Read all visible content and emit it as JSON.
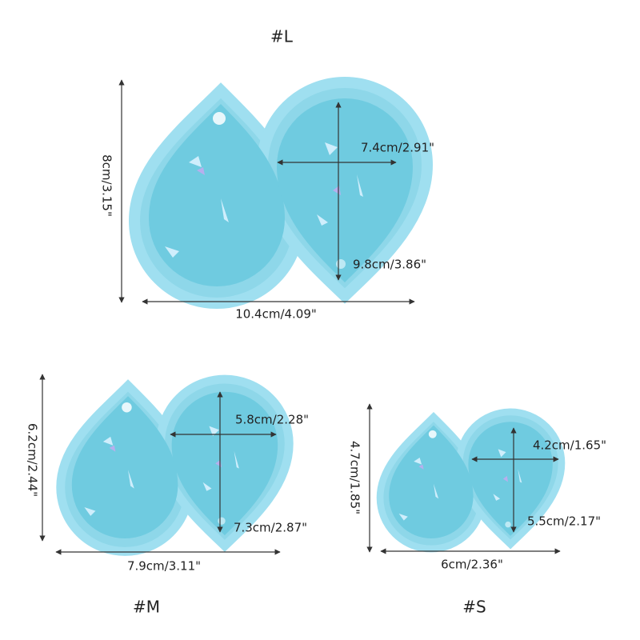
{
  "molds": [
    {
      "label": "#L",
      "height": "8cm/3.15\"",
      "width": "10.4cm/4.09\"",
      "inner_width": "7.4cm/2.91\"",
      "inner_height": "9.8cm/3.86\""
    },
    {
      "label": "#M",
      "height": "6.2cm/2.44\"",
      "width": "7.9cm/3.11\"",
      "inner_width": "5.8cm/2.28\"",
      "inner_height": "7.3cm/2.87\""
    },
    {
      "label": "#S",
      "height": "4.7cm/1.85\"",
      "width": "6cm/2.36\"",
      "inner_width": "4.2cm/1.65\"",
      "inner_height": "5.5cm/2.17\""
    }
  ]
}
